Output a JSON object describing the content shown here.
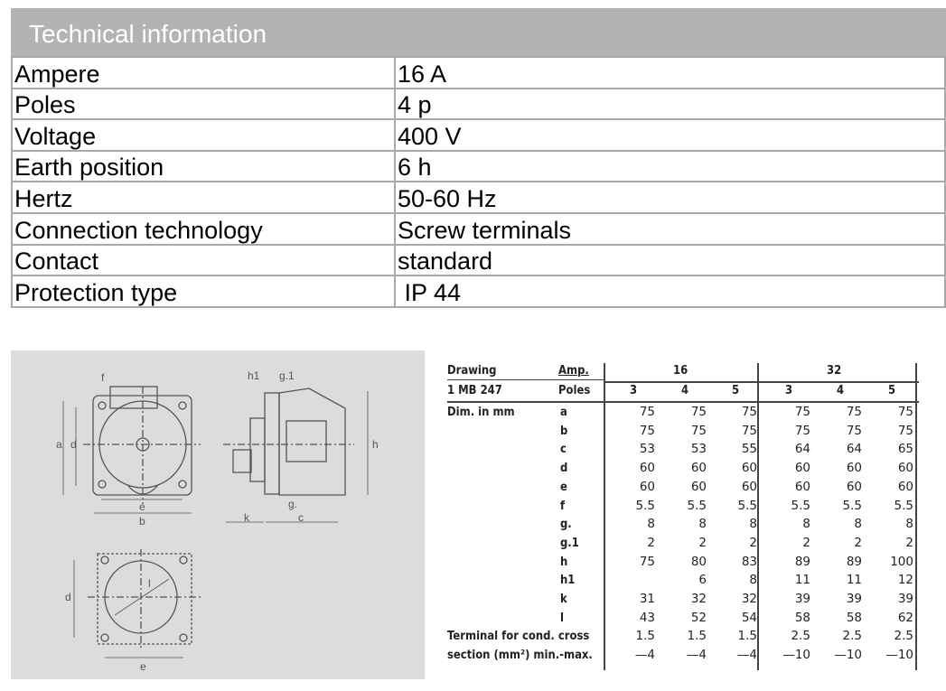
{
  "technical_information": {
    "title": "Technical information",
    "rows": [
      {
        "label": "Ampere",
        "value": "16 A"
      },
      {
        "label": "Poles",
        "value": "4 p"
      },
      {
        "label": "Voltage",
        "value": "400 V"
      },
      {
        "label": "Earth position",
        "value": "6 h"
      },
      {
        "label": "Hertz",
        "value": "50-60 Hz"
      },
      {
        "label": "Connection technology",
        "value": "Screw terminals"
      },
      {
        "label": "Contact",
        "value": "standard"
      },
      {
        "label": "Protection type",
        "value": " IP 44"
      }
    ]
  },
  "drawing_labels": {
    "a": "a",
    "b": "b",
    "c": "c",
    "d": "d",
    "e": "e",
    "f": "f",
    "g": "g.",
    "g1": "g.1",
    "h": "h",
    "h1": "h1",
    "k": "k",
    "l": "l"
  },
  "dimensions": {
    "drawing_label": "Drawing",
    "drawing_number": "1 MB 247",
    "amp_label": "Amp.",
    "poles_label": "Poles",
    "dim_label": "Dim. in mm",
    "amp_groups": [
      "16",
      "32"
    ],
    "poles": [
      "3",
      "4",
      "5",
      "3",
      "4",
      "5"
    ],
    "rows": [
      {
        "key": "a",
        "values": [
          "75",
          "75",
          "75",
          "75",
          "75",
          "75"
        ]
      },
      {
        "key": "b",
        "values": [
          "75",
          "75",
          "75",
          "75",
          "75",
          "75"
        ]
      },
      {
        "key": "c",
        "values": [
          "53",
          "53",
          "55",
          "64",
          "64",
          "65"
        ]
      },
      {
        "key": "d",
        "values": [
          "60",
          "60",
          "60",
          "60",
          "60",
          "60"
        ]
      },
      {
        "key": "e",
        "values": [
          "60",
          "60",
          "60",
          "60",
          "60",
          "60"
        ]
      },
      {
        "key": "f",
        "values": [
          "5.5",
          "5.5",
          "5.5",
          "5.5",
          "5.5",
          "5.5"
        ]
      },
      {
        "key": "g.",
        "values": [
          "8",
          "8",
          "8",
          "8",
          "8",
          "8"
        ]
      },
      {
        "key": "g.1",
        "values": [
          "2",
          "2",
          "2",
          "2",
          "2",
          "2"
        ]
      },
      {
        "key": "h",
        "values": [
          "75",
          "80",
          "83",
          "89",
          "89",
          "100"
        ]
      },
      {
        "key": "h1",
        "values": [
          "",
          "6",
          "8",
          "11",
          "11",
          "12"
        ]
      },
      {
        "key": "k",
        "values": [
          "31",
          "32",
          "32",
          "39",
          "39",
          "39"
        ]
      },
      {
        "key": "l",
        "values": [
          "43",
          "52",
          "54",
          "58",
          "58",
          "62"
        ]
      }
    ],
    "terminal_label_1": "Terminal for cond. cross",
    "terminal_label_2": "section (mm²) min.-max.",
    "terminal_min": [
      "1.5",
      "1.5",
      "1.5",
      "2.5",
      "2.5",
      "2.5"
    ],
    "terminal_max": [
      "—4",
      "—4",
      "—4",
      "—10",
      "—10",
      "—10"
    ]
  }
}
